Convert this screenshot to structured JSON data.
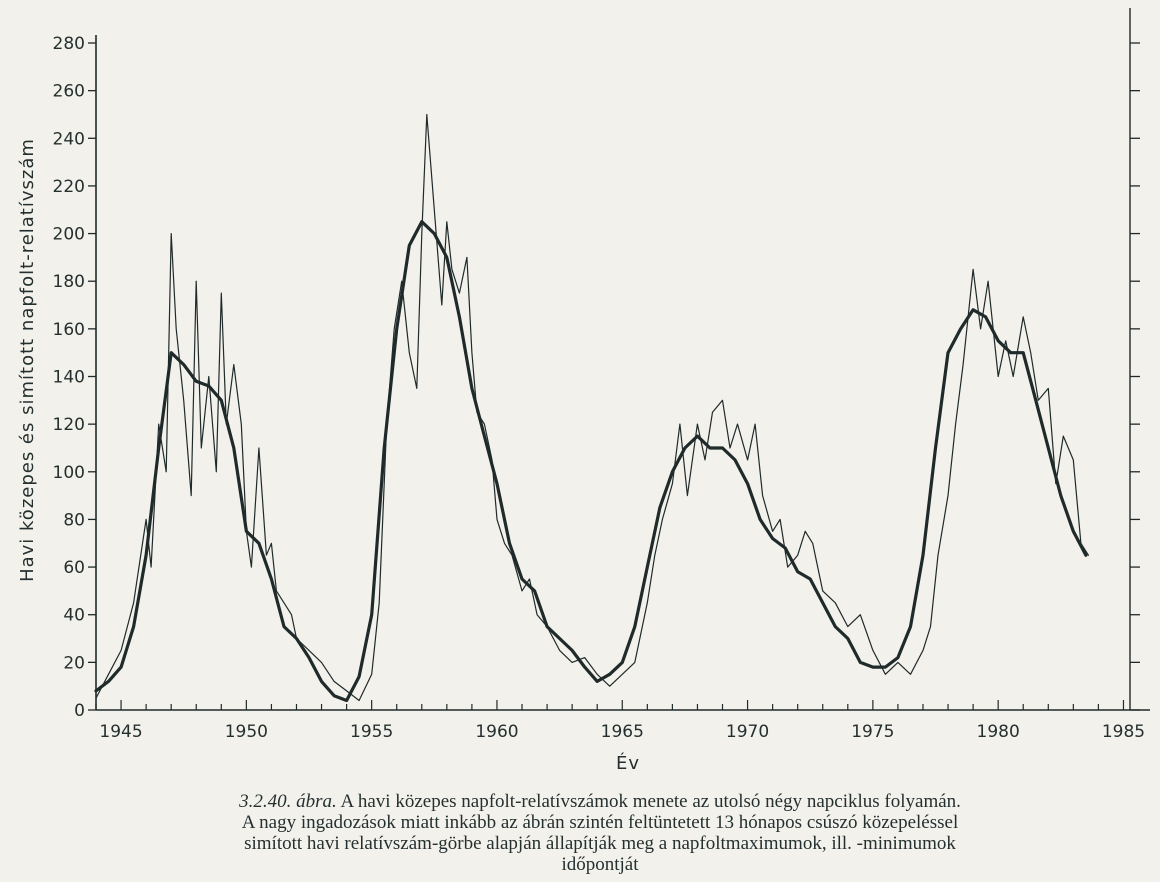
{
  "chart_data": {
    "type": "line",
    "xlabel": "Év",
    "ylabel": "Havi közepes és simított napfolt-relatívszám",
    "xlim": [
      1944,
      1985.5
    ],
    "ylim": [
      0,
      280
    ],
    "x_ticks": [
      1945,
      1950,
      1955,
      1960,
      1965,
      1970,
      1975,
      1980,
      1985
    ],
    "y_ticks": [
      0,
      20,
      40,
      60,
      80,
      100,
      120,
      140,
      160,
      180,
      200,
      220,
      240,
      260,
      280
    ],
    "grid": false,
    "series": [
      {
        "x": [
          1944.0,
          1944.5,
          1945.0,
          1945.5,
          1946.0,
          1946.5,
          1947.0,
          1947.5,
          1948.0,
          1948.5,
          1949.0,
          1949.5,
          1950.0,
          1950.5,
          1951.0,
          1951.5,
          1952.0,
          1952.5,
          1953.0,
          1953.5,
          1954.0,
          1954.5,
          1955.0,
          1955.5,
          1956.0,
          1956.5,
          1957.0,
          1957.5,
          1958.0,
          1958.5,
          1959.0,
          1959.5,
          1960.0,
          1960.5,
          1961.0,
          1961.5,
          1962.0,
          1962.5,
          1963.0,
          1963.5,
          1964.0,
          1964.5,
          1965.0,
          1965.5,
          1966.0,
          1966.5,
          1967.0,
          1967.5,
          1968.0,
          1968.5,
          1969.0,
          1969.5,
          1970.0,
          1970.5,
          1971.0,
          1971.5,
          1972.0,
          1972.5,
          1973.0,
          1973.5,
          1974.0,
          1974.5,
          1975.0,
          1975.5,
          1976.0,
          1976.5,
          1977.0,
          1977.5,
          1978.0,
          1978.5,
          1979.0,
          1979.5,
          1980.0,
          1980.5,
          1981.0,
          1981.5,
          1982.0,
          1982.5,
          1983.0,
          1983.5
        ],
        "values": [
          8,
          12,
          18,
          35,
          65,
          110,
          150,
          145,
          138,
          136,
          130,
          110,
          75,
          70,
          55,
          35,
          30,
          22,
          12,
          6,
          4,
          14,
          40,
          110,
          160,
          195,
          205,
          200,
          190,
          165,
          135,
          115,
          95,
          70,
          55,
          50,
          35,
          30,
          25,
          18,
          12,
          15,
          20,
          35,
          60,
          85,
          100,
          110,
          115,
          110,
          110,
          105,
          95,
          80,
          72,
          68,
          58,
          55,
          45,
          35,
          30,
          20,
          18,
          18,
          22,
          35,
          65,
          110,
          150,
          160,
          168,
          165,
          155,
          150,
          150,
          130,
          110,
          90,
          75,
          65
        ]
      },
      {
        "x": [
          1944.0,
          1944.5,
          1945.0,
          1945.5,
          1946.0,
          1946.2,
          1946.5,
          1946.8,
          1947.0,
          1947.2,
          1947.5,
          1947.8,
          1948.0,
          1948.2,
          1948.5,
          1948.8,
          1949.0,
          1949.2,
          1949.5,
          1949.8,
          1950.0,
          1950.2,
          1950.5,
          1950.8,
          1951.0,
          1951.2,
          1951.5,
          1951.8,
          1952.0,
          1952.5,
          1953.0,
          1953.5,
          1954.0,
          1954.5,
          1955.0,
          1955.3,
          1955.6,
          1955.9,
          1956.2,
          1956.5,
          1956.8,
          1957.0,
          1957.2,
          1957.5,
          1957.8,
          1958.0,
          1958.2,
          1958.5,
          1958.8,
          1959.0,
          1959.2,
          1959.5,
          1959.8,
          1960.0,
          1960.3,
          1960.6,
          1961.0,
          1961.3,
          1961.6,
          1962.0,
          1962.5,
          1963.0,
          1963.5,
          1964.0,
          1964.5,
          1965.0,
          1965.5,
          1966.0,
          1966.3,
          1966.6,
          1967.0,
          1967.3,
          1967.6,
          1968.0,
          1968.3,
          1968.6,
          1969.0,
          1969.3,
          1969.6,
          1970.0,
          1970.3,
          1970.6,
          1971.0,
          1971.3,
          1971.6,
          1972.0,
          1972.3,
          1972.6,
          1973.0,
          1973.5,
          1974.0,
          1974.5,
          1975.0,
          1975.5,
          1976.0,
          1976.5,
          1977.0,
          1977.3,
          1977.6,
          1978.0,
          1978.3,
          1978.6,
          1979.0,
          1979.3,
          1979.6,
          1980.0,
          1980.3,
          1980.6,
          1981.0,
          1981.3,
          1981.6,
          1982.0,
          1982.3,
          1982.6,
          1983.0,
          1983.3,
          1983.6
        ],
        "values": [
          5,
          15,
          25,
          45,
          80,
          60,
          120,
          100,
          200,
          160,
          130,
          90,
          180,
          110,
          140,
          100,
          175,
          120,
          145,
          120,
          75,
          60,
          110,
          65,
          70,
          50,
          45,
          40,
          30,
          25,
          20,
          12,
          8,
          4,
          15,
          45,
          120,
          160,
          180,
          150,
          135,
          200,
          250,
          210,
          170,
          205,
          185,
          175,
          190,
          150,
          125,
          120,
          105,
          80,
          70,
          65,
          50,
          55,
          40,
          35,
          25,
          20,
          22,
          15,
          10,
          15,
          20,
          45,
          65,
          80,
          95,
          120,
          90,
          120,
          105,
          125,
          130,
          110,
          120,
          105,
          120,
          90,
          75,
          80,
          60,
          65,
          75,
          70,
          50,
          45,
          35,
          40,
          25,
          15,
          20,
          15,
          25,
          35,
          65,
          90,
          120,
          145,
          185,
          160,
          180,
          140,
          155,
          140,
          165,
          150,
          130,
          135,
          95,
          115,
          105,
          70,
          65
        ]
      }
    ]
  },
  "caption": {
    "fig_no": "3.2.40. ábra.",
    "line1": "A havi közepes napfolt-relatívszámok menete az utolsó négy napciklus folyamán.",
    "line2": "A nagy ingadozások miatt inkább az ábrán szintén feltüntetett 13 hónapos csúszó közepeléssel",
    "line3": "simított havi relatívszám-görbe alapján állapítják meg a napfoltmaximumok, ill. -minimumok",
    "line4": "időpontját"
  },
  "colors": {
    "ink": "#1f2a2a",
    "paper": "#f3f1ec"
  }
}
